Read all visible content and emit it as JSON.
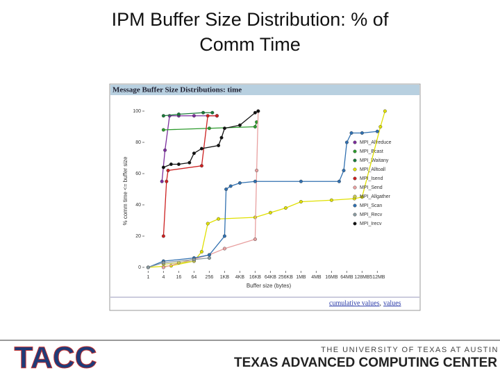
{
  "slide": {
    "title": "IPM Buffer Size Distribution: % of Comm Time"
  },
  "chart_data": {
    "type": "line",
    "title": "Message Buffer Size Distributions: time",
    "x_label": "Buffer size (bytes)",
    "y_label": "% comm time <= buffer size",
    "xlim": [
      -0.2,
      16
    ],
    "ylim": [
      -2,
      104
    ],
    "xticks": [
      {
        "value": 0,
        "label": "1"
      },
      {
        "value": 1,
        "label": "4"
      },
      {
        "value": 2,
        "label": "16"
      },
      {
        "value": 3,
        "label": "64"
      },
      {
        "value": 4,
        "label": "256"
      },
      {
        "value": 5,
        "label": "1KB"
      },
      {
        "value": 6,
        "label": "4KB"
      },
      {
        "value": 7,
        "label": "16KB"
      },
      {
        "value": 8,
        "label": "64KB"
      },
      {
        "value": 9,
        "label": "256KB"
      },
      {
        "value": 10,
        "label": "1MB"
      },
      {
        "value": 11,
        "label": "4MB"
      },
      {
        "value": 12,
        "label": "16MB"
      },
      {
        "value": 13,
        "label": "64MB"
      },
      {
        "value": 14,
        "label": "128MB"
      },
      {
        "value": 15,
        "label": "512MB"
      }
    ],
    "yticks": [
      0,
      20,
      40,
      60,
      80,
      100
    ],
    "series": [
      {
        "name": "MPI_Allreduce",
        "color": "#7b2d9c",
        "x": [
          0.9,
          1.1,
          1.4,
          2,
          3,
          4.5
        ],
        "values": [
          55,
          75,
          97,
          97,
          97,
          97
        ]
      },
      {
        "name": "MPI_Bcast",
        "color": "#2e9b2e",
        "x": [
          1,
          4,
          7,
          7.1
        ],
        "values": [
          88,
          89,
          90,
          93
        ]
      },
      {
        "name": "MPI_Waitany",
        "color": "#1a7a3a",
        "x": [
          1,
          2,
          3.6,
          4.2
        ],
        "values": [
          97,
          98,
          99,
          99
        ]
      },
      {
        "name": "MPI_Alltoall",
        "color": "#e0e000",
        "x": [
          0,
          1.5,
          3,
          3.5,
          3.9,
          4.6,
          7,
          8,
          9,
          10,
          12,
          13.5,
          14,
          15.2,
          15.5
        ],
        "values": [
          0,
          1,
          4,
          10,
          28,
          31,
          32,
          35,
          38,
          42,
          43,
          44,
          45,
          90,
          100
        ]
      },
      {
        "name": "MPI_Isend",
        "color": "#cc2020",
        "x": [
          1,
          1.2,
          1.3,
          3.5,
          3.9,
          4.5
        ],
        "values": [
          20,
          55,
          62,
          65,
          97,
          97
        ]
      },
      {
        "name": "MPI_Send",
        "color": "#e8a0a0",
        "x": [
          1,
          4,
          5,
          7,
          7.1,
          7.2
        ],
        "values": [
          0,
          8,
          12,
          18,
          62,
          100
        ]
      },
      {
        "name": "MPI_Allgather",
        "color": "#c8c850",
        "x": [
          1,
          2,
          3
        ],
        "values": [
          2,
          3,
          4
        ]
      },
      {
        "name": "MPI_Scan",
        "color": "#3070b0",
        "x": [
          0,
          1,
          3,
          4,
          5,
          5.1,
          5.4,
          6,
          7,
          10,
          12.5,
          12.8,
          13,
          13.3,
          14,
          15
        ],
        "values": [
          0,
          4,
          6,
          8,
          20,
          50,
          52,
          54,
          55,
          55,
          55,
          62,
          80,
          86,
          86,
          87
        ]
      },
      {
        "name": "MPI_Recv",
        "color": "#8a9aa0",
        "x": [
          0,
          1,
          3,
          4
        ],
        "values": [
          0,
          3,
          5,
          6
        ]
      },
      {
        "name": "MPI_Irecv",
        "color": "#111111",
        "x": [
          1,
          1.5,
          2,
          2.7,
          3,
          3.5,
          4.6,
          4.8,
          5,
          6,
          7,
          7.2
        ],
        "values": [
          64,
          66,
          66,
          67,
          73,
          76,
          78,
          83,
          89,
          91,
          99,
          100
        ]
      }
    ],
    "links": [
      "cumulative values",
      "values"
    ],
    "link_separator": ","
  },
  "footer": {
    "logo": "TACC",
    "university": "THE UNIVERSITY OF TEXAS AT AUSTIN",
    "center": "TEXAS ADVANCED COMPUTING CENTER"
  }
}
